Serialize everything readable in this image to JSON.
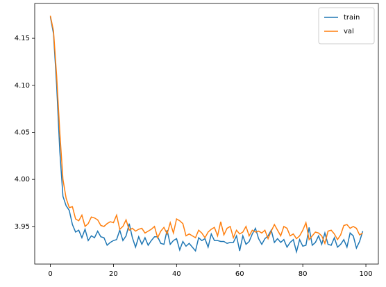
{
  "chart_data": {
    "type": "line",
    "x": [
      0,
      1,
      2,
      3,
      4,
      5,
      6,
      7,
      8,
      9,
      10,
      11,
      12,
      13,
      14,
      15,
      16,
      17,
      18,
      19,
      20,
      21,
      22,
      23,
      24,
      25,
      26,
      27,
      28,
      29,
      30,
      31,
      32,
      33,
      34,
      35,
      36,
      37,
      38,
      39,
      40,
      41,
      42,
      43,
      44,
      45,
      46,
      47,
      48,
      49,
      50,
      51,
      52,
      53,
      54,
      55,
      56,
      57,
      58,
      59,
      60,
      61,
      62,
      63,
      64,
      65,
      66,
      67,
      68,
      69,
      70,
      71,
      72,
      73,
      74,
      75,
      76,
      77,
      78,
      79,
      80,
      81,
      82,
      83,
      84,
      85,
      86,
      87,
      88,
      89,
      90,
      91,
      92,
      93,
      94,
      95,
      96,
      97,
      98,
      99
    ],
    "series": [
      {
        "name": "train",
        "color": "#1f77b4",
        "values": [
          4.173,
          4.155,
          4.1,
          4.03,
          3.982,
          3.972,
          3.967,
          3.952,
          3.944,
          3.946,
          3.938,
          3.947,
          3.935,
          3.94,
          3.938,
          3.945,
          3.939,
          3.938,
          3.93,
          3.933,
          3.935,
          3.936,
          3.946,
          3.935,
          3.94,
          3.953,
          3.938,
          3.928,
          3.939,
          3.931,
          3.938,
          3.93,
          3.935,
          3.939,
          3.939,
          3.932,
          3.931,
          3.946,
          3.931,
          3.935,
          3.937,
          3.925,
          3.934,
          3.929,
          3.932,
          3.928,
          3.924,
          3.938,
          3.935,
          3.937,
          3.928,
          3.942,
          3.935,
          3.935,
          3.934,
          3.934,
          3.932,
          3.933,
          3.933,
          3.94,
          3.924,
          3.94,
          3.931,
          3.934,
          3.942,
          3.948,
          3.937,
          3.931,
          3.937,
          3.94,
          3.946,
          3.933,
          3.937,
          3.933,
          3.936,
          3.928,
          3.933,
          3.936,
          3.923,
          3.936,
          3.929,
          3.93,
          3.949,
          3.93,
          3.933,
          3.94,
          3.931,
          3.943,
          3.931,
          3.93,
          3.938,
          3.928,
          3.931,
          3.936,
          3.928,
          3.943,
          3.94,
          3.927,
          3.934,
          3.945
        ]
      },
      {
        "name": "val",
        "color": "#ff7f0e",
        "values": [
          4.174,
          4.158,
          4.11,
          4.05,
          4.0,
          3.98,
          3.97,
          3.971,
          3.958,
          3.956,
          3.962,
          3.95,
          3.953,
          3.96,
          3.959,
          3.957,
          3.951,
          3.95,
          3.953,
          3.955,
          3.954,
          3.962,
          3.947,
          3.95,
          3.957,
          3.946,
          3.948,
          3.945,
          3.947,
          3.948,
          3.943,
          3.945,
          3.947,
          3.95,
          3.938,
          3.945,
          3.949,
          3.942,
          3.954,
          3.943,
          3.958,
          3.956,
          3.953,
          3.94,
          3.942,
          3.94,
          3.938,
          3.946,
          3.943,
          3.938,
          3.944,
          3.947,
          3.949,
          3.94,
          3.955,
          3.941,
          3.948,
          3.95,
          3.938,
          3.946,
          3.942,
          3.944,
          3.95,
          3.94,
          3.946,
          3.944,
          3.945,
          3.943,
          3.946,
          3.937,
          3.945,
          3.952,
          3.946,
          3.94,
          3.95,
          3.948,
          3.94,
          3.942,
          3.937,
          3.94,
          3.946,
          3.954,
          3.936,
          3.94,
          3.944,
          3.943,
          3.94,
          3.932,
          3.945,
          3.946,
          3.942,
          3.936,
          3.941,
          3.951,
          3.952,
          3.948,
          3.95,
          3.948,
          3.941,
          3.943
        ]
      }
    ],
    "xlim": [
      -4.95,
      103.95
    ],
    "ylim": [
      3.91,
      4.187
    ],
    "xticks": [
      0,
      20,
      40,
      60,
      80,
      100
    ],
    "yticks": [
      3.95,
      {
        "value": 4,
        "label": "4.00"
      },
      4.05,
      {
        "value": 4.1,
        "label": "4.10"
      },
      4.15
    ],
    "legend": "upper right"
  }
}
